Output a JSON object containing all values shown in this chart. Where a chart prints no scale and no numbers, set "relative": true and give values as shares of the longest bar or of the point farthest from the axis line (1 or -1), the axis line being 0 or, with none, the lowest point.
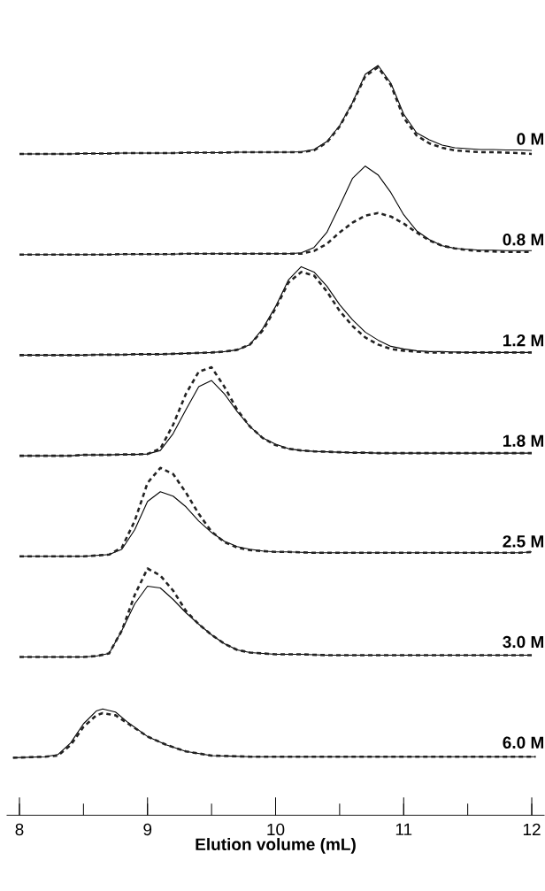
{
  "chart_data": [
    {
      "type": "line",
      "relative": true,
      "tick_labels": false,
      "annotations": [
        "0 M"
      ],
      "categories": [
        null,
        null,
        null,
        null,
        null,
        null,
        null,
        null,
        null,
        null,
        null,
        null,
        null,
        null,
        null,
        null,
        null,
        null,
        null,
        null,
        null,
        null,
        null,
        null,
        null,
        null,
        null,
        null,
        null,
        null,
        null,
        null,
        null,
        null,
        null,
        null,
        null,
        null,
        null,
        null,
        null
      ],
      "series": [
        {
          "color": "#000000",
          "line_style": "solid",
          "values": [
            0,
            0,
            0,
            0,
            0,
            0.005,
            0.005,
            0.005,
            0.01,
            0.01,
            0.01,
            0.01,
            0.01,
            0.015,
            0.015,
            0.015,
            0.015,
            0.02,
            0.02,
            0.02,
            0.02,
            0.02,
            0.025,
            0.05,
            0.14,
            0.32,
            0.58,
            0.9,
            1.0,
            0.8,
            0.45,
            0.24,
            0.16,
            0.1,
            0.07,
            0.06,
            0.05,
            0.05,
            0.045,
            0.045,
            0.04
          ]
        },
        {
          "color": "#222222",
          "line_style": "dashed",
          "values": [
            0,
            0,
            0,
            0,
            0,
            0.005,
            0.005,
            0.005,
            0.01,
            0.01,
            0.01,
            0.01,
            0.01,
            0.015,
            0.015,
            0.015,
            0.015,
            0.02,
            0.02,
            0.02,
            0.02,
            0.02,
            0.02,
            0.04,
            0.13,
            0.31,
            0.57,
            0.88,
            0.98,
            0.78,
            0.41,
            0.21,
            0.12,
            0.07,
            0.04,
            0.03,
            0.02,
            0.02,
            0.015,
            0.01,
            0
          ]
        }
      ]
    },
    {
      "type": "line",
      "relative": true,
      "tick_labels": false,
      "annotations": [
        "0.8 M"
      ],
      "categories": [
        null,
        null,
        null,
        null,
        null,
        null,
        null,
        null,
        null,
        null,
        null,
        null,
        null,
        null,
        null,
        null,
        null,
        null,
        null,
        null,
        null,
        null,
        null,
        null,
        null,
        null,
        null,
        null,
        null,
        null,
        null,
        null,
        null,
        null,
        null,
        null,
        null,
        null,
        null,
        null,
        null
      ],
      "series": [
        {
          "color": "#000000",
          "line_style": "solid",
          "values": [
            0,
            0,
            0,
            0,
            0,
            0,
            0,
            0,
            0.005,
            0.005,
            0.005,
            0.005,
            0.005,
            0.01,
            0.01,
            0.01,
            0.01,
            0.01,
            0.01,
            0.01,
            0.01,
            0.01,
            0.02,
            0.08,
            0.25,
            0.55,
            0.86,
            1.0,
            0.9,
            0.7,
            0.45,
            0.27,
            0.17,
            0.1,
            0.07,
            0.06,
            0.05,
            0.05,
            0.045,
            0.045,
            0.045
          ]
        },
        {
          "color": "#222222",
          "line_style": "dashed",
          "values": [
            0,
            0,
            0,
            0,
            0,
            0,
            0,
            0,
            0.005,
            0.005,
            0.005,
            0.005,
            0.005,
            0.01,
            0.01,
            0.01,
            0.01,
            0.01,
            0.01,
            0.01,
            0.01,
            0.01,
            0.01,
            0.04,
            0.12,
            0.25,
            0.36,
            0.44,
            0.47,
            0.43,
            0.35,
            0.25,
            0.16,
            0.1,
            0.07,
            0.05,
            0.04,
            0.035,
            0.03,
            0.03,
            0.03
          ]
        }
      ]
    },
    {
      "type": "line",
      "relative": true,
      "tick_labels": false,
      "annotations": [
        "1.2 M"
      ],
      "categories": [
        null,
        null,
        null,
        null,
        null,
        null,
        null,
        null,
        null,
        null,
        null,
        null,
        null,
        null,
        null,
        null,
        null,
        null,
        null,
        null,
        null,
        null,
        null,
        null,
        null,
        null,
        null,
        null,
        null,
        null,
        null,
        null,
        null,
        null,
        null,
        null,
        null,
        null,
        null,
        null,
        null
      ],
      "series": [
        {
          "color": "#000000",
          "line_style": "solid",
          "values": [
            0,
            0,
            0,
            0,
            0,
            0,
            0.005,
            0.005,
            0.005,
            0.01,
            0.01,
            0.01,
            0.015,
            0.02,
            0.025,
            0.03,
            0.04,
            0.06,
            0.12,
            0.3,
            0.55,
            0.85,
            1.0,
            0.94,
            0.78,
            0.57,
            0.4,
            0.26,
            0.17,
            0.1,
            0.07,
            0.05,
            0.04,
            0.04,
            0.035,
            0.03,
            0.03,
            0.03,
            0.03,
            0.03,
            0.03
          ]
        },
        {
          "color": "#222222",
          "line_style": "dashed",
          "values": [
            0,
            0,
            0,
            0,
            0,
            0,
            0.005,
            0.005,
            0.005,
            0.01,
            0.01,
            0.01,
            0.015,
            0.02,
            0.025,
            0.03,
            0.04,
            0.06,
            0.12,
            0.28,
            0.53,
            0.82,
            0.94,
            0.9,
            0.72,
            0.5,
            0.33,
            0.2,
            0.12,
            0.07,
            0.05,
            0.04,
            0.03,
            0.03,
            0.03,
            0.03,
            0.03,
            0.03,
            0.03,
            0.03,
            0.03
          ]
        }
      ]
    },
    {
      "type": "line",
      "relative": true,
      "tick_labels": false,
      "annotations": [
        "1.8 M"
      ],
      "categories": [
        null,
        null,
        null,
        null,
        null,
        null,
        null,
        null,
        null,
        null,
        null,
        null,
        null,
        null,
        null,
        null,
        null,
        null,
        null,
        null,
        null,
        null,
        null,
        null,
        null,
        null,
        null,
        null,
        null,
        null,
        null,
        null,
        null,
        null,
        null,
        null,
        null,
        null,
        null,
        null,
        null
      ],
      "series": [
        {
          "color": "#000000",
          "line_style": "solid",
          "values": [
            0,
            0,
            0,
            0,
            0,
            0.01,
            0.01,
            0.01,
            0.015,
            0.015,
            0.02,
            0.06,
            0.25,
            0.52,
            0.78,
            0.85,
            0.7,
            0.5,
            0.33,
            0.2,
            0.13,
            0.08,
            0.06,
            0.05,
            0.045,
            0.04,
            0.035,
            0.035,
            0.03,
            0.03,
            0.03,
            0.03,
            0.03,
            0.03,
            0.03,
            0.03,
            0.03,
            0.03,
            0.03,
            0.03,
            0.03
          ]
        },
        {
          "color": "#222222",
          "line_style": "dashed",
          "values": [
            0,
            0,
            0,
            0,
            0,
            0.01,
            0.01,
            0.01,
            0.015,
            0.015,
            0.02,
            0.08,
            0.35,
            0.7,
            0.95,
            1.0,
            0.78,
            0.52,
            0.33,
            0.2,
            0.12,
            0.08,
            0.06,
            0.05,
            0.045,
            0.04,
            0.035,
            0.035,
            0.03,
            0.03,
            0.03,
            0.03,
            0.03,
            0.03,
            0.03,
            0.03,
            0.03,
            0.03,
            0.03,
            0.03,
            0.03
          ]
        }
      ]
    },
    {
      "type": "line",
      "relative": true,
      "tick_labels": false,
      "annotations": [
        "2.5 M"
      ],
      "categories": [
        null,
        null,
        null,
        null,
        null,
        null,
        null,
        null,
        null,
        null,
        null,
        null,
        null,
        null,
        null,
        null,
        null,
        null,
        null,
        null,
        null,
        null,
        null,
        null,
        null,
        null,
        null,
        null,
        null,
        null,
        null,
        null,
        null,
        null,
        null,
        null,
        null,
        null,
        null,
        null,
        null
      ],
      "series": [
        {
          "color": "#000000",
          "line_style": "solid",
          "values": [
            0,
            0,
            0,
            0,
            0,
            0,
            0.01,
            0.02,
            0.08,
            0.3,
            0.62,
            0.73,
            0.68,
            0.56,
            0.4,
            0.27,
            0.17,
            0.11,
            0.08,
            0.06,
            0.05,
            0.05,
            0.045,
            0.04,
            0.04,
            0.04,
            0.04,
            0.04,
            0.04,
            0.04,
            0.04,
            0.04,
            0.04,
            0.04,
            0.04,
            0.04,
            0.04,
            0.04,
            0.04,
            0.04,
            0.05
          ]
        },
        {
          "color": "#222222",
          "line_style": "dashed",
          "values": [
            0,
            0,
            0,
            0,
            0,
            0,
            0.01,
            0.02,
            0.1,
            0.4,
            0.83,
            1.0,
            0.93,
            0.72,
            0.48,
            0.28,
            0.16,
            0.1,
            0.07,
            0.06,
            0.05,
            0.05,
            0.045,
            0.04,
            0.04,
            0.04,
            0.04,
            0.04,
            0.04,
            0.04,
            0.04,
            0.04,
            0.04,
            0.04,
            0.04,
            0.04,
            0.04,
            0.04,
            0.04,
            0.04,
            0.05
          ]
        }
      ]
    },
    {
      "type": "line",
      "relative": true,
      "tick_labels": false,
      "annotations": [
        "3.0 M"
      ],
      "categories": [
        null,
        null,
        null,
        null,
        null,
        null,
        null,
        null,
        null,
        null,
        null,
        null,
        null,
        null,
        null,
        null,
        null,
        null,
        null,
        null,
        null,
        null,
        null,
        null,
        null,
        null,
        null,
        null,
        null,
        null,
        null,
        null,
        null,
        null,
        null,
        null,
        null,
        null,
        null,
        null,
        null
      ],
      "series": [
        {
          "color": "#000000",
          "line_style": "solid",
          "values": [
            0,
            0,
            0,
            0,
            0,
            0,
            0.01,
            0.04,
            0.3,
            0.6,
            0.8,
            0.78,
            0.65,
            0.5,
            0.37,
            0.25,
            0.15,
            0.08,
            0.05,
            0.04,
            0.03,
            0.03,
            0.03,
            0.025,
            0.02,
            0.02,
            0.02,
            0.02,
            0.02,
            0.02,
            0.02,
            0.02,
            0.02,
            0.02,
            0.02,
            0.02,
            0.02,
            0.02,
            0.02,
            0.02,
            0.02
          ]
        },
        {
          "color": "#222222",
          "line_style": "dashed",
          "values": [
            0,
            0,
            0,
            0,
            0,
            0,
            0.01,
            0.04,
            0.3,
            0.7,
            1.0,
            0.92,
            0.75,
            0.52,
            0.37,
            0.25,
            0.15,
            0.08,
            0.05,
            0.04,
            0.03,
            0.03,
            0.03,
            0.025,
            0.02,
            0.02,
            0.02,
            0.02,
            0.02,
            0.02,
            0.02,
            0.02,
            0.02,
            0.02,
            0.02,
            0.02,
            0.02,
            0.02,
            0.02,
            0.02,
            0.02
          ]
        }
      ]
    },
    {
      "type": "line",
      "relative": true,
      "xlim": [
        7.9,
        12.1
      ],
      "tick_labels": "x",
      "annotations": [
        "6.0 M"
      ],
      "xlabel": "Elution volume (mL)",
      "xticks": [
        8,
        {
          "value": 8.5,
          "label": null
        },
        9,
        {
          "value": 9.5,
          "label": null
        },
        10,
        {
          "value": 10.5,
          "label": null
        },
        11,
        {
          "value": 11.5,
          "label": null
        },
        12
      ],
      "x": [
        7.95,
        8.2,
        8.3,
        8.4,
        8.5,
        8.6,
        8.65,
        8.75,
        8.85,
        9.0,
        9.15,
        9.3,
        9.5,
        9.8,
        10.5,
        11.0,
        11.5,
        12.03
      ],
      "series": [
        {
          "color": "#000000",
          "line_style": "solid",
          "values": [
            0.54,
            0.55,
            0.57,
            0.68,
            0.86,
            0.98,
            1.0,
            0.97,
            0.87,
            0.74,
            0.66,
            0.6,
            0.56,
            0.55,
            0.55,
            0.55,
            0.55,
            0.55
          ]
        },
        {
          "color": "#222222",
          "line_style": "dashed",
          "values": [
            0.54,
            0.55,
            0.56,
            0.66,
            0.83,
            0.94,
            0.96,
            0.94,
            0.86,
            0.74,
            0.66,
            0.6,
            0.56,
            0.55,
            0.55,
            0.55,
            0.55,
            0.55
          ]
        }
      ]
    }
  ]
}
